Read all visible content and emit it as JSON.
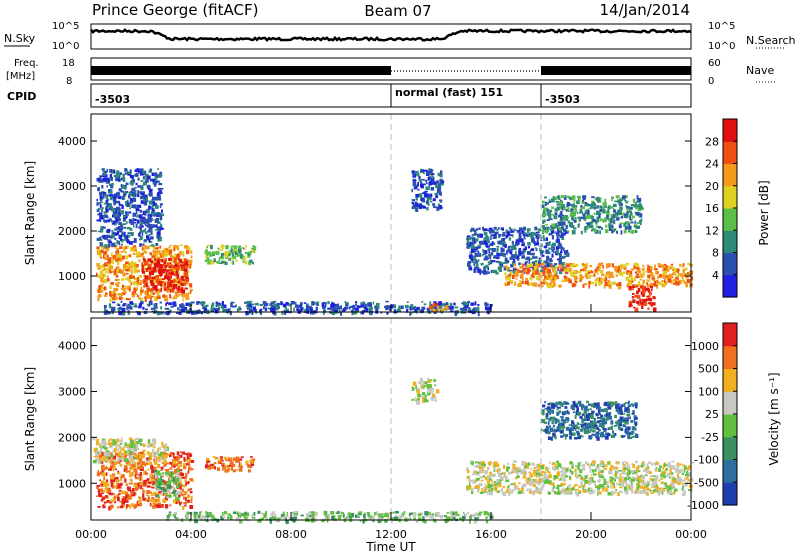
{
  "header": {
    "station": "Prince George (fitACF)",
    "beam": "Beam 07",
    "date": "14/Jan/2014"
  },
  "noise": {
    "left_label": "N.Sky",
    "right_label": "N.Search",
    "tick_top": "10^5",
    "tick_bottom": "10^0"
  },
  "freq": {
    "label_line1": "Freq.",
    "label_line2": "[MHz]",
    "tick_top": "18",
    "tick_bottom": "8",
    "right_label": "Nave",
    "right_tick_top": "60",
    "right_tick_bottom": "0"
  },
  "cpid": {
    "label": "CPID",
    "segments": [
      "-3503",
      "normal (fast) 151",
      "-3503"
    ]
  },
  "chart_data": [
    {
      "type": "heatmap",
      "panel": "power",
      "ylabel": "Slant Range [km]",
      "xlabel": "",
      "x_ticks": [
        "00:00",
        "04:00",
        "08:00",
        "12:00",
        "16:00",
        "20:00",
        "00:00"
      ],
      "y_ticks": [
        1000,
        2000,
        3000,
        4000
      ],
      "ylim": [
        200,
        4600
      ],
      "x_hours": [
        0,
        24
      ],
      "colorbar_label": "Power [dB]",
      "colorbar_ticks": [
        "4",
        "8",
        "12",
        "16",
        "20",
        "24",
        "28"
      ],
      "colorbar_colors": [
        "#1f1fe0",
        "#2a4fb0",
        "#2e8a78",
        "#5bbf4a",
        "#e0d020",
        "#f59a1a",
        "#f05010",
        "#e01010"
      ],
      "echo_regions": [
        {
          "t0": 0.2,
          "t1": 4.0,
          "r0": 500,
          "r1": 1700,
          "level": 5
        },
        {
          "t0": 2.0,
          "t1": 3.8,
          "r0": 700,
          "r1": 1400,
          "level": 7
        },
        {
          "t0": 0.2,
          "t1": 2.8,
          "r0": 1700,
          "r1": 3400,
          "level": 1
        },
        {
          "t0": 4.5,
          "t1": 6.5,
          "r0": 1300,
          "r1": 1700,
          "level": 3
        },
        {
          "t0": 0.5,
          "t1": 16.0,
          "r0": 200,
          "r1": 450,
          "level": 1
        },
        {
          "t0": 12.8,
          "t1": 14.0,
          "r0": 2500,
          "r1": 3400,
          "level": 1
        },
        {
          "t0": 15.0,
          "t1": 19.0,
          "r0": 1100,
          "r1": 2100,
          "level": 1
        },
        {
          "t0": 16.5,
          "t1": 24.0,
          "r0": 800,
          "r1": 1300,
          "level": 5
        },
        {
          "t0": 21.5,
          "t1": 22.5,
          "r0": 300,
          "r1": 800,
          "level": 7
        },
        {
          "t0": 18.0,
          "t1": 22.0,
          "r0": 2000,
          "r1": 2800,
          "level": 2
        },
        {
          "t0": 13.5,
          "t1": 14.2,
          "r0": 250,
          "r1": 400,
          "level": 6
        }
      ]
    },
    {
      "type": "heatmap",
      "panel": "velocity",
      "ylabel": "Slant Range [km]",
      "xlabel": "Time UT",
      "x_ticks": [
        "00:00",
        "04:00",
        "08:00",
        "12:00",
        "16:00",
        "20:00",
        "00:00"
      ],
      "y_ticks": [
        1000,
        2000,
        3000,
        4000
      ],
      "ylim": [
        200,
        4600
      ],
      "x_hours": [
        0,
        24
      ],
      "colorbar_label": "Velocity [m s⁻¹]",
      "colorbar_ticks": [
        "1000",
        "500",
        "100",
        "25",
        "-25",
        "-100",
        "-500",
        "-1000"
      ],
      "colorbar_colors": [
        "#1f3fb0",
        "#2a6fa0",
        "#3a9060",
        "#60c040",
        "#c8c8c0",
        "#f0b020",
        "#f07020",
        "#e02020"
      ],
      "echo_regions": [
        {
          "t0": 0.2,
          "t1": 4.0,
          "r0": 500,
          "r1": 1700,
          "level": 6
        },
        {
          "t0": 0.0,
          "t1": 3.0,
          "r0": 1500,
          "r1": 2000,
          "level": 4
        },
        {
          "t0": 2.5,
          "t1": 3.5,
          "r0": 700,
          "r1": 1300,
          "level": 3
        },
        {
          "t0": 4.5,
          "t1": 6.5,
          "r0": 1300,
          "r1": 1600,
          "level": 6
        },
        {
          "t0": 3.0,
          "t1": 16.0,
          "r0": 200,
          "r1": 400,
          "level": 3
        },
        {
          "t0": 12.8,
          "t1": 13.8,
          "r0": 2800,
          "r1": 3300,
          "level": 4
        },
        {
          "t0": 15.0,
          "t1": 24.0,
          "r0": 800,
          "r1": 1500,
          "level": 4
        },
        {
          "t0": 18.0,
          "t1": 21.8,
          "r0": 2000,
          "r1": 2800,
          "level": 1
        }
      ]
    }
  ]
}
